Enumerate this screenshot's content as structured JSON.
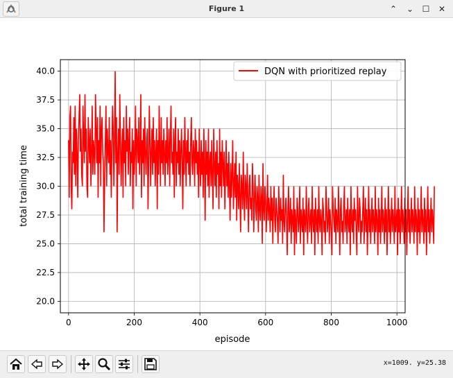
{
  "window": {
    "title": "Figure 1",
    "controls": {
      "collapse": "⌃",
      "minimize": "⌄",
      "maximize": "☐",
      "close": "✕"
    }
  },
  "toolbar": {
    "buttons": [
      {
        "name": "home-button",
        "icon": "home-icon"
      },
      {
        "name": "back-button",
        "icon": "left-arrow-icon"
      },
      {
        "name": "forward-button",
        "icon": "right-arrow-icon"
      },
      {
        "name": "pan-button",
        "icon": "move-icon"
      },
      {
        "name": "zoom-button",
        "icon": "magnifier-icon"
      },
      {
        "name": "configure-subplots-button",
        "icon": "sliders-icon"
      },
      {
        "name": "save-button",
        "icon": "floppy-icon"
      }
    ],
    "coordinates": "x=1009. y=25.38"
  },
  "chart_data": {
    "type": "line",
    "title": "",
    "xlabel": "episode",
    "ylabel": "total training time",
    "xlim": [
      -25,
      1025
    ],
    "ylim": [
      19.0,
      41.0
    ],
    "xticks": [
      0,
      200,
      400,
      600,
      800,
      1000
    ],
    "yticks": [
      20.0,
      22.5,
      25.0,
      27.5,
      30.0,
      32.5,
      35.0,
      37.5,
      40.0
    ],
    "grid": true,
    "legend_position": "upper right",
    "series": [
      {
        "name": "DQN with prioritized replay",
        "color": "#ff0000",
        "x_start": 0,
        "x_step": 2,
        "values": [
          34,
          29,
          36,
          37,
          30,
          28,
          33,
          32,
          36,
          31,
          37,
          30,
          35,
          33,
          29,
          34,
          36,
          38,
          33,
          35,
          31,
          30,
          37,
          34,
          32,
          38,
          33,
          35,
          30,
          29,
          36,
          34,
          32,
          35,
          30,
          33,
          37,
          31,
          34,
          33,
          31,
          38,
          35,
          32,
          36,
          29,
          34,
          32,
          37,
          30,
          35,
          36,
          33,
          32,
          26,
          31,
          34,
          37,
          30,
          35,
          33,
          32,
          36,
          31,
          34,
          29,
          33,
          37,
          35,
          30,
          34,
          40,
          32,
          36,
          26,
          33,
          35,
          31,
          38,
          34,
          30,
          33,
          35,
          29,
          36,
          32,
          34,
          30,
          37,
          33,
          35,
          31,
          34,
          36,
          30,
          33,
          32,
          35,
          28,
          34,
          31,
          33,
          37,
          30,
          35,
          34,
          32,
          36,
          31,
          33,
          38,
          29,
          34,
          32,
          35,
          30,
          36,
          33,
          31,
          34,
          35,
          28,
          32,
          37,
          34,
          30,
          33,
          35,
          31,
          36,
          32,
          34,
          30,
          33,
          35,
          28,
          34,
          31,
          37,
          33,
          30,
          36,
          32,
          34,
          31,
          35,
          33,
          30,
          34,
          32,
          36,
          31,
          33,
          35,
          30,
          34,
          37,
          32,
          33,
          31,
          35,
          29,
          34,
          36,
          30,
          33,
          32,
          35,
          31,
          34,
          30,
          33,
          35,
          32,
          28,
          34,
          31,
          36,
          33,
          30,
          34,
          32,
          35,
          31,
          33,
          30,
          34,
          36,
          32,
          31,
          34,
          33,
          30,
          35,
          32,
          34,
          31,
          33,
          29,
          35,
          32,
          30,
          34,
          31,
          33,
          29,
          35,
          32,
          27,
          34,
          31,
          33,
          30,
          35,
          29,
          32,
          33,
          30,
          34,
          31,
          28,
          35,
          32,
          30,
          33,
          29,
          34,
          31,
          32,
          28,
          35,
          30,
          33,
          29,
          34,
          32,
          30,
          33,
          28,
          31,
          34,
          30,
          32,
          29,
          33,
          30,
          27,
          32,
          29,
          31,
          34,
          28,
          30,
          32,
          29,
          33,
          27,
          31,
          30,
          28,
          32,
          29,
          26,
          31,
          30,
          28,
          33,
          29,
          27,
          31,
          30,
          28,
          32,
          29,
          26,
          30,
          31,
          28,
          29,
          27,
          32,
          30,
          26,
          29,
          31,
          28,
          27,
          30,
          29,
          26,
          31,
          28,
          27,
          30,
          29,
          25,
          32,
          28,
          27,
          30,
          29,
          26,
          28,
          31,
          27,
          29,
          28,
          26,
          30,
          27,
          29,
          25,
          28,
          30,
          27,
          26,
          29,
          28,
          27,
          25,
          30,
          28,
          26,
          29,
          27,
          28,
          25,
          31,
          27,
          26,
          28,
          29,
          27,
          24,
          28,
          30,
          26,
          27,
          29,
          25,
          28,
          27,
          26,
          30,
          24,
          28,
          27,
          25,
          29,
          28,
          26,
          27,
          30,
          25,
          28,
          27,
          26,
          29,
          24,
          28,
          27,
          26,
          30,
          27,
          25,
          28,
          29,
          26,
          27,
          28,
          25,
          30,
          27,
          26,
          28,
          24,
          29,
          27,
          26,
          28,
          25,
          30,
          27,
          26,
          28,
          27,
          24,
          29,
          28,
          26,
          27,
          25,
          30,
          28,
          26,
          27,
          29,
          25,
          28,
          27,
          26,
          24,
          30,
          28,
          27,
          26,
          29,
          25,
          28,
          27,
          26,
          30,
          27,
          24,
          28,
          29,
          26,
          27,
          25,
          28,
          30,
          26,
          27,
          28,
          25,
          29,
          27,
          26,
          28,
          24,
          30,
          27,
          26,
          28,
          25,
          29,
          27,
          28,
          26,
          24,
          30,
          27,
          26,
          29,
          28,
          25,
          27,
          26,
          28,
          30,
          25,
          27,
          29,
          26,
          28,
          24,
          27,
          30,
          26,
          28,
          25,
          27,
          29,
          26,
          28,
          27,
          25,
          30,
          26,
          28,
          27,
          24,
          29,
          26,
          28,
          25,
          27,
          30,
          26,
          28,
          27,
          25,
          29,
          26,
          28,
          24,
          27,
          30,
          26,
          28,
          25,
          27,
          29,
          26,
          28,
          27,
          25,
          30,
          26,
          27,
          28,
          24,
          29,
          26,
          28,
          25,
          27,
          30,
          26,
          28,
          27,
          25,
          29,
          26,
          28,
          24,
          27,
          30,
          26,
          28,
          25,
          27,
          29,
          26,
          28,
          27,
          25,
          30,
          26,
          28,
          27,
          24,
          29,
          26,
          28,
          25,
          27,
          30,
          26,
          28,
          27,
          25,
          29,
          26,
          28,
          24,
          27,
          30,
          26,
          28,
          25,
          27,
          29,
          26,
          28,
          27,
          25,
          30
        ]
      }
    ]
  }
}
